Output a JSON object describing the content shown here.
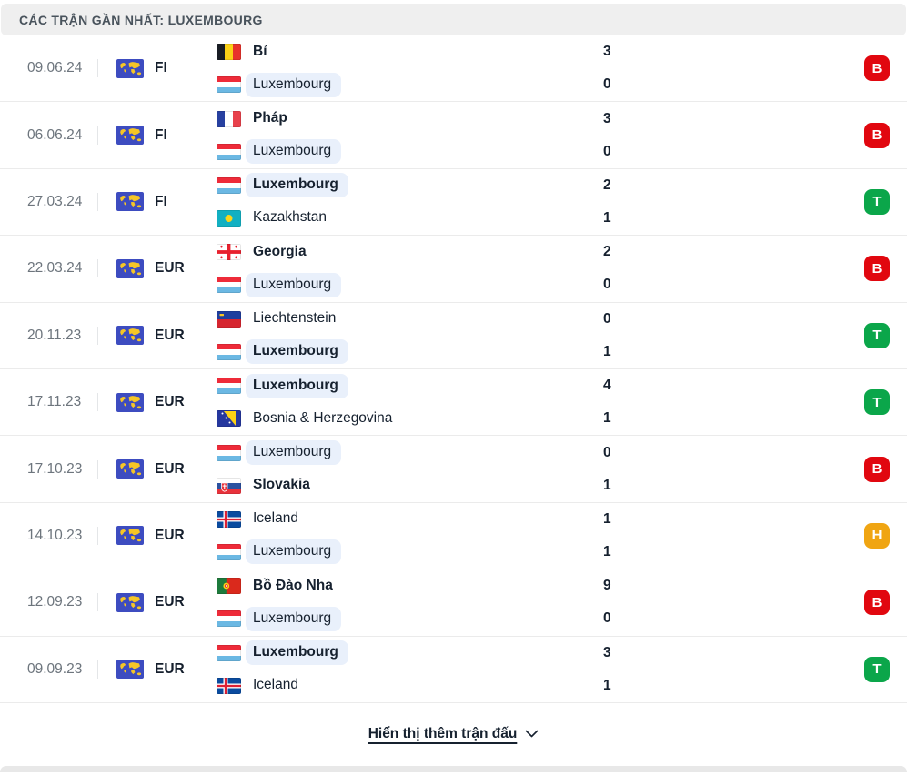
{
  "header": {
    "title": "CÁC TRẬN GẦN NHẤT: LUXEMBOURG"
  },
  "footer": {
    "show_more_label": "Hiển thị thêm trận đấu",
    "chevron_icon": "chevron-down-icon"
  },
  "list_icon": "world-map-icon",
  "colors": {
    "win": "#0ba64a",
    "loss": "#e1070f",
    "draw": "#f0a512",
    "team_highlight": "#e9f0fb"
  },
  "matches": [
    {
      "date": "09.06.24",
      "competition": "FI",
      "home": {
        "name": "Bỉ",
        "flag": "be",
        "score": "3",
        "bold": true,
        "highlight": false
      },
      "away": {
        "name": "Luxembourg",
        "flag": "lu",
        "score": "0",
        "bold": false,
        "highlight": true
      },
      "result": {
        "label": "B",
        "type": "loss"
      }
    },
    {
      "date": "06.06.24",
      "competition": "FI",
      "home": {
        "name": "Pháp",
        "flag": "fr",
        "score": "3",
        "bold": true,
        "highlight": false
      },
      "away": {
        "name": "Luxembourg",
        "flag": "lu",
        "score": "0",
        "bold": false,
        "highlight": true
      },
      "result": {
        "label": "B",
        "type": "loss"
      }
    },
    {
      "date": "27.03.24",
      "competition": "FI",
      "home": {
        "name": "Luxembourg",
        "flag": "lu",
        "score": "2",
        "bold": true,
        "highlight": true
      },
      "away": {
        "name": "Kazakhstan",
        "flag": "kz",
        "score": "1",
        "bold": false,
        "highlight": false
      },
      "result": {
        "label": "T",
        "type": "win"
      }
    },
    {
      "date": "22.03.24",
      "competition": "EUR",
      "home": {
        "name": "Georgia",
        "flag": "ge",
        "score": "2",
        "bold": true,
        "highlight": false
      },
      "away": {
        "name": "Luxembourg",
        "flag": "lu",
        "score": "0",
        "bold": false,
        "highlight": true
      },
      "result": {
        "label": "B",
        "type": "loss"
      }
    },
    {
      "date": "20.11.23",
      "competition": "EUR",
      "home": {
        "name": "Liechtenstein",
        "flag": "li",
        "score": "0",
        "bold": false,
        "highlight": false
      },
      "away": {
        "name": "Luxembourg",
        "flag": "lu",
        "score": "1",
        "bold": true,
        "highlight": true
      },
      "result": {
        "label": "T",
        "type": "win"
      }
    },
    {
      "date": "17.11.23",
      "competition": "EUR",
      "home": {
        "name": "Luxembourg",
        "flag": "lu",
        "score": "4",
        "bold": true,
        "highlight": true
      },
      "away": {
        "name": "Bosnia & Herzegovina",
        "flag": "ba",
        "score": "1",
        "bold": false,
        "highlight": false
      },
      "result": {
        "label": "T",
        "type": "win"
      }
    },
    {
      "date": "17.10.23",
      "competition": "EUR",
      "home": {
        "name": "Luxembourg",
        "flag": "lu",
        "score": "0",
        "bold": false,
        "highlight": true
      },
      "away": {
        "name": "Slovakia",
        "flag": "sk",
        "score": "1",
        "bold": true,
        "highlight": false
      },
      "result": {
        "label": "B",
        "type": "loss"
      }
    },
    {
      "date": "14.10.23",
      "competition": "EUR",
      "home": {
        "name": "Iceland",
        "flag": "is",
        "score": "1",
        "bold": false,
        "highlight": false
      },
      "away": {
        "name": "Luxembourg",
        "flag": "lu",
        "score": "1",
        "bold": false,
        "highlight": true
      },
      "result": {
        "label": "H",
        "type": "draw"
      }
    },
    {
      "date": "12.09.23",
      "competition": "EUR",
      "home": {
        "name": "Bồ Đào Nha",
        "flag": "pt",
        "score": "9",
        "bold": true,
        "highlight": false
      },
      "away": {
        "name": "Luxembourg",
        "flag": "lu",
        "score": "0",
        "bold": false,
        "highlight": true
      },
      "result": {
        "label": "B",
        "type": "loss"
      }
    },
    {
      "date": "09.09.23",
      "competition": "EUR",
      "home": {
        "name": "Luxembourg",
        "flag": "lu",
        "score": "3",
        "bold": true,
        "highlight": true
      },
      "away": {
        "name": "Iceland",
        "flag": "is",
        "score": "1",
        "bold": false,
        "highlight": false
      },
      "result": {
        "label": "T",
        "type": "win"
      }
    }
  ]
}
